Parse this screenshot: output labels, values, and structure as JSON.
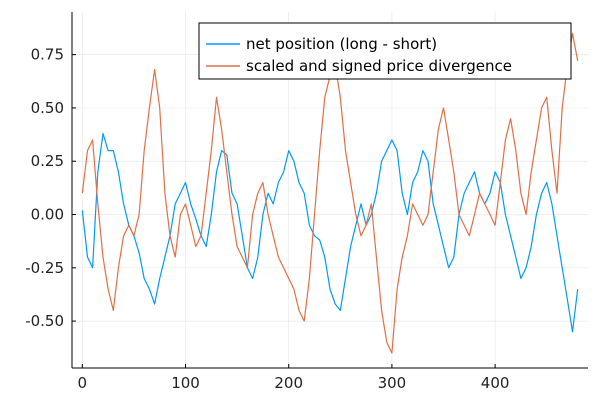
{
  "chart_data": {
    "type": "line",
    "title": "",
    "xlabel": "",
    "ylabel": "",
    "xlim": [
      -10,
      490
    ],
    "ylim": [
      -0.72,
      0.95
    ],
    "x_ticks": [
      0,
      100,
      200,
      300,
      400
    ],
    "x_tick_labels": [
      "0",
      "100",
      "200",
      "300",
      "400"
    ],
    "y_ticks": [
      -0.5,
      -0.25,
      0.0,
      0.25,
      0.5,
      0.75
    ],
    "y_tick_labels": [
      "-0.50",
      "-0.25",
      "0.00",
      "0.25",
      "0.50",
      "0.75"
    ],
    "grid": true,
    "legend_position": "top-right",
    "series": [
      {
        "name": "net position (long - short)",
        "color": "#009af9",
        "x": [
          0,
          5,
          10,
          15,
          20,
          25,
          30,
          35,
          40,
          45,
          50,
          55,
          60,
          65,
          70,
          75,
          80,
          85,
          90,
          95,
          100,
          105,
          110,
          115,
          120,
          125,
          130,
          135,
          140,
          145,
          150,
          155,
          160,
          165,
          170,
          175,
          180,
          185,
          190,
          195,
          200,
          205,
          210,
          215,
          220,
          225,
          230,
          235,
          240,
          245,
          250,
          255,
          260,
          265,
          270,
          275,
          280,
          285,
          290,
          295,
          300,
          305,
          310,
          315,
          320,
          325,
          330,
          335,
          340,
          345,
          350,
          355,
          360,
          365,
          370,
          375,
          380,
          385,
          390,
          395,
          400,
          405,
          410,
          415,
          420,
          425,
          430,
          435,
          440,
          445,
          450,
          455,
          460,
          465,
          470,
          475,
          480
        ],
        "y": [
          0.02,
          -0.2,
          -0.25,
          0.2,
          0.38,
          0.3,
          0.3,
          0.2,
          0.05,
          -0.05,
          -0.1,
          -0.18,
          -0.3,
          -0.35,
          -0.42,
          -0.3,
          -0.2,
          -0.1,
          0.05,
          0.1,
          0.15,
          0.05,
          -0.02,
          -0.1,
          -0.15,
          0.0,
          0.2,
          0.3,
          0.28,
          0.1,
          0.05,
          -0.1,
          -0.25,
          -0.3,
          -0.2,
          0.0,
          0.1,
          0.05,
          0.15,
          0.2,
          0.3,
          0.25,
          0.15,
          0.1,
          -0.05,
          -0.1,
          -0.12,
          -0.2,
          -0.35,
          -0.42,
          -0.45,
          -0.3,
          -0.15,
          -0.05,
          0.05,
          -0.05,
          0.0,
          0.1,
          0.25,
          0.3,
          0.35,
          0.3,
          0.1,
          0.0,
          0.15,
          0.2,
          0.3,
          0.25,
          0.05,
          -0.05,
          -0.15,
          -0.25,
          -0.2,
          0.0,
          0.1,
          0.15,
          0.2,
          0.1,
          0.05,
          0.1,
          0.2,
          0.15,
          0.0,
          -0.1,
          -0.2,
          -0.3,
          -0.25,
          -0.15,
          0.0,
          0.1,
          0.15,
          0.05,
          -0.1,
          -0.25,
          -0.4,
          -0.55,
          -0.35
        ]
      },
      {
        "name": "scaled and signed price divergence",
        "color": "#e26f46",
        "x": [
          0,
          5,
          10,
          15,
          20,
          25,
          30,
          35,
          40,
          45,
          50,
          55,
          60,
          65,
          70,
          75,
          80,
          85,
          90,
          95,
          100,
          105,
          110,
          115,
          120,
          125,
          130,
          135,
          140,
          145,
          150,
          155,
          160,
          165,
          170,
          175,
          180,
          185,
          190,
          195,
          200,
          205,
          210,
          215,
          220,
          225,
          230,
          235,
          240,
          245,
          250,
          255,
          260,
          265,
          270,
          275,
          280,
          285,
          290,
          295,
          300,
          305,
          310,
          315,
          320,
          325,
          330,
          335,
          340,
          345,
          350,
          355,
          360,
          365,
          370,
          375,
          380,
          385,
          390,
          395,
          400,
          405,
          410,
          415,
          420,
          425,
          430,
          435,
          440,
          445,
          450,
          455,
          460,
          465,
          470,
          475,
          480
        ],
        "y": [
          0.1,
          0.3,
          0.35,
          0.05,
          -0.2,
          -0.35,
          -0.45,
          -0.25,
          -0.1,
          -0.05,
          -0.1,
          0.0,
          0.3,
          0.5,
          0.68,
          0.5,
          0.1,
          -0.1,
          -0.2,
          0.0,
          0.05,
          -0.05,
          -0.15,
          -0.1,
          0.1,
          0.3,
          0.55,
          0.4,
          0.2,
          0.0,
          -0.15,
          -0.2,
          -0.25,
          0.0,
          0.1,
          0.15,
          0.0,
          -0.1,
          -0.2,
          -0.25,
          -0.3,
          -0.35,
          -0.45,
          -0.5,
          -0.3,
          0.0,
          0.3,
          0.55,
          0.65,
          0.7,
          0.55,
          0.3,
          0.15,
          0.0,
          -0.1,
          -0.05,
          0.05,
          -0.2,
          -0.45,
          -0.6,
          -0.65,
          -0.35,
          -0.2,
          -0.1,
          0.05,
          0.0,
          -0.05,
          0.0,
          0.2,
          0.4,
          0.5,
          0.35,
          0.2,
          0.0,
          -0.05,
          -0.1,
          0.0,
          0.1,
          0.05,
          0.0,
          -0.05,
          0.15,
          0.35,
          0.45,
          0.3,
          0.1,
          0.0,
          0.2,
          0.35,
          0.5,
          0.55,
          0.3,
          0.1,
          0.5,
          0.7,
          0.85,
          0.72
        ]
      }
    ]
  }
}
